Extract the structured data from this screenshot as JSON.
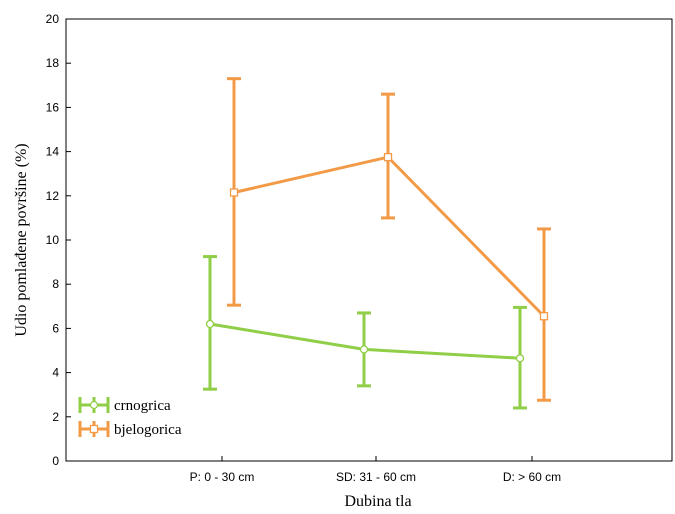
{
  "chart_data": {
    "type": "line",
    "title": "",
    "xlabel": "Dubina tla",
    "ylabel": "Udio pomlađene površine (%)",
    "ylim": [
      0,
      20
    ],
    "yticks": [
      0,
      2,
      4,
      6,
      8,
      10,
      12,
      14,
      16,
      18,
      20
    ],
    "categories": [
      "P: 0 - 30 cm",
      "SD: 31 - 60 cm",
      "D: > 60 cm"
    ],
    "grid": false,
    "legend_position": "bottom-left",
    "series": [
      {
        "name": "crnogrica",
        "color": "#8fce46",
        "marker": "circle",
        "values": [
          6.2,
          5.05,
          4.65
        ],
        "lower": [
          3.25,
          3.4,
          2.4
        ],
        "upper": [
          9.25,
          6.7,
          6.95
        ]
      },
      {
        "name": "bjelogorica",
        "color": "#f39a46",
        "marker": "square",
        "values": [
          12.15,
          13.75,
          6.55
        ],
        "lower": [
          7.05,
          11.0,
          2.75
        ],
        "upper": [
          17.3,
          16.6,
          10.5
        ]
      }
    ]
  }
}
